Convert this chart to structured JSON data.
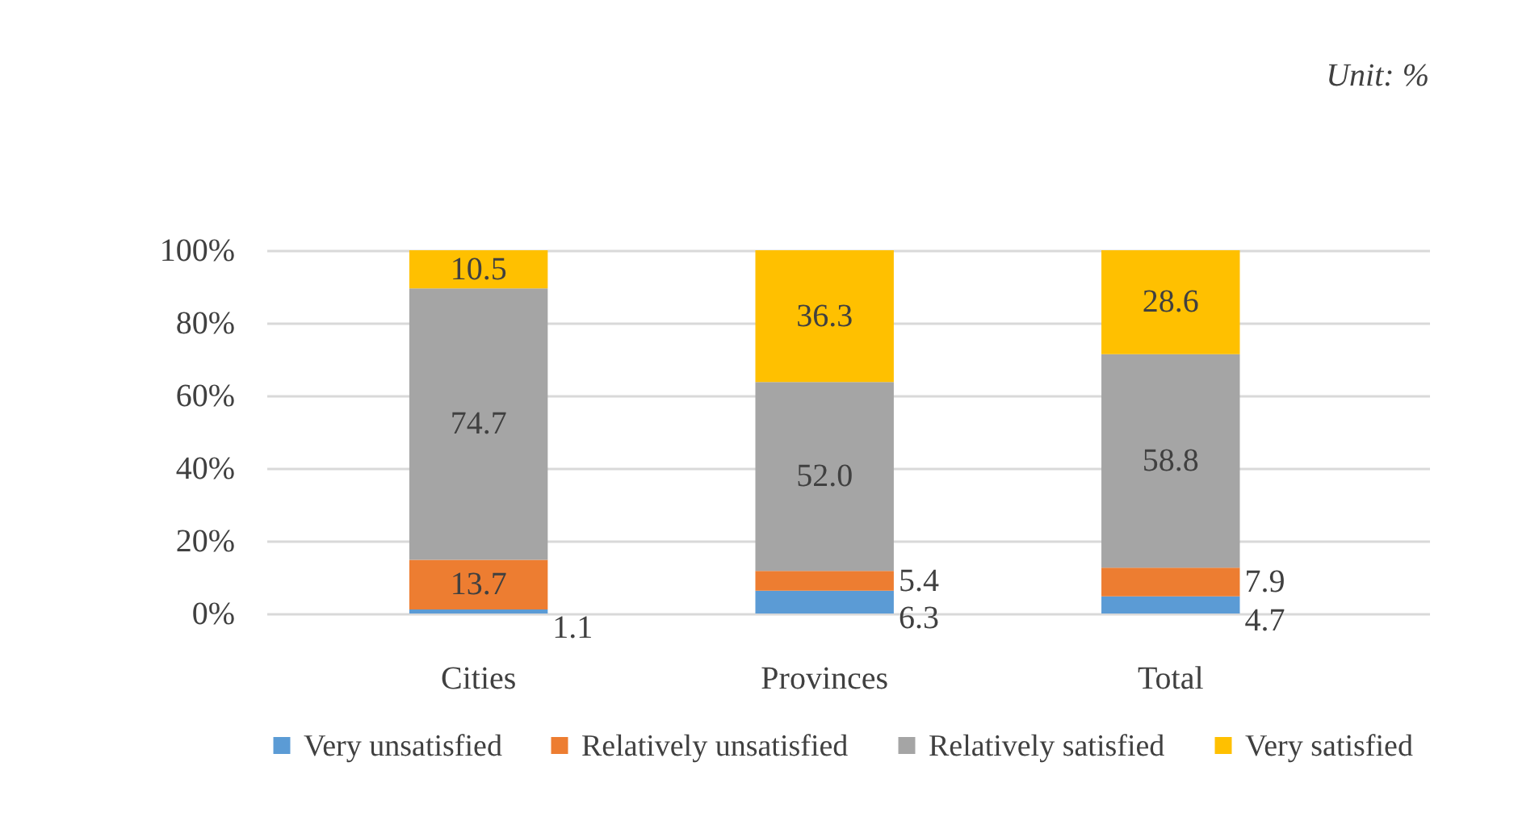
{
  "chart_data": {
    "type": "bar",
    "stacked": true,
    "categories": [
      "Cities",
      "Provinces",
      "Total"
    ],
    "series": [
      {
        "name": "Very unsatisfied",
        "color": "#5b9bd5",
        "values": [
          1.1,
          6.3,
          4.7
        ],
        "value_labels": [
          "1.1",
          "6.3",
          "4.7"
        ]
      },
      {
        "name": "Relatively unsatisfied",
        "color": "#ed7d31",
        "values": [
          13.7,
          5.4,
          7.9
        ],
        "value_labels": [
          "13.7",
          "5.4",
          "7.9"
        ]
      },
      {
        "name": "Relatively satisfied",
        "color": "#a5a5a5",
        "values": [
          74.7,
          52.0,
          58.8
        ],
        "value_labels": [
          "74.7",
          "52.0",
          "58.8"
        ]
      },
      {
        "name": "Very satisfied",
        "color": "#ffc000",
        "values": [
          10.5,
          36.3,
          28.6
        ],
        "value_labels": [
          "10.5",
          "36.3",
          "28.6"
        ]
      }
    ],
    "ylim": [
      0,
      100
    ],
    "yticks": [
      {
        "value": 0,
        "label": "0%"
      },
      {
        "value": 20,
        "label": "20%"
      },
      {
        "value": 40,
        "label": "40%"
      },
      {
        "value": 60,
        "label": "60%"
      },
      {
        "value": 80,
        "label": "80%"
      },
      {
        "value": 100,
        "label": "100%"
      }
    ],
    "grid": "y",
    "legend": "bottom",
    "annotations": [
      "Unit: %"
    ]
  }
}
